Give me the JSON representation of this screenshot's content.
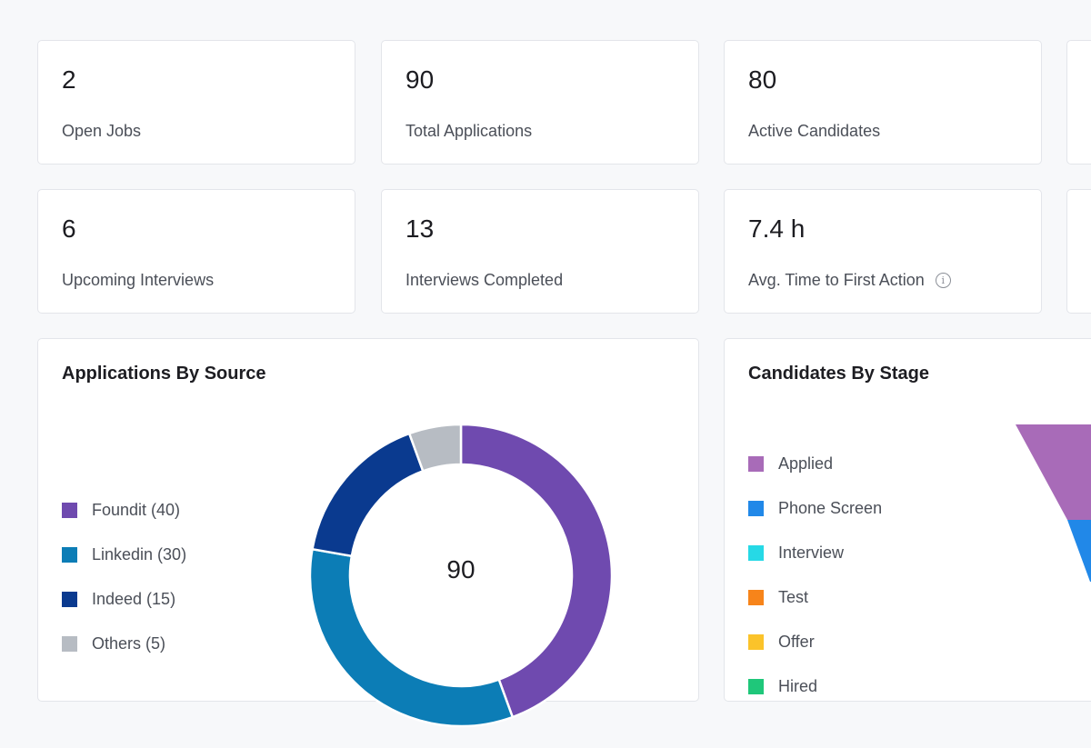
{
  "stats": [
    {
      "value": "2",
      "label": "Open Jobs"
    },
    {
      "value": "90",
      "label": "Total Applications"
    },
    {
      "value": "80",
      "label": "Active Candidates"
    },
    {
      "value": "6",
      "label": "Upcoming Interviews"
    },
    {
      "value": "13",
      "label": "Interviews Completed"
    },
    {
      "value": "7.4 h",
      "label": "Avg. Time to First Action"
    }
  ],
  "info_icon": "info-icon",
  "applications_by_source": {
    "title": "Applications By Source",
    "total": "90",
    "legend": [
      {
        "label": "Foundit (40)",
        "color": "#6f4aaf"
      },
      {
        "label": "Linkedin (30)",
        "color": "#0c7db6"
      },
      {
        "label": "Indeed (15)",
        "color": "#0a3a8f"
      },
      {
        "label": "Others (5)",
        "color": "#b7bcc3"
      }
    ]
  },
  "candidates_by_stage": {
    "title": "Candidates By Stage",
    "legend": [
      {
        "label": "Applied",
        "color": "#a86bb8"
      },
      {
        "label": "Phone Screen",
        "color": "#2188e8"
      },
      {
        "label": "Interview",
        "color": "#26d9e6"
      },
      {
        "label": "Test",
        "color": "#f7841a"
      },
      {
        "label": "Offer",
        "color": "#fbc32a"
      },
      {
        "label": "Hired",
        "color": "#1fc77a"
      }
    ]
  },
  "chart_data": [
    {
      "type": "pie",
      "title": "Applications By Source",
      "categories": [
        "Foundit",
        "Linkedin",
        "Indeed",
        "Others"
      ],
      "values": [
        40,
        30,
        15,
        5
      ],
      "colors": [
        "#6f4aaf",
        "#0c7db6",
        "#0a3a8f",
        "#b7bcc3"
      ],
      "center_label": "90"
    }
  ]
}
